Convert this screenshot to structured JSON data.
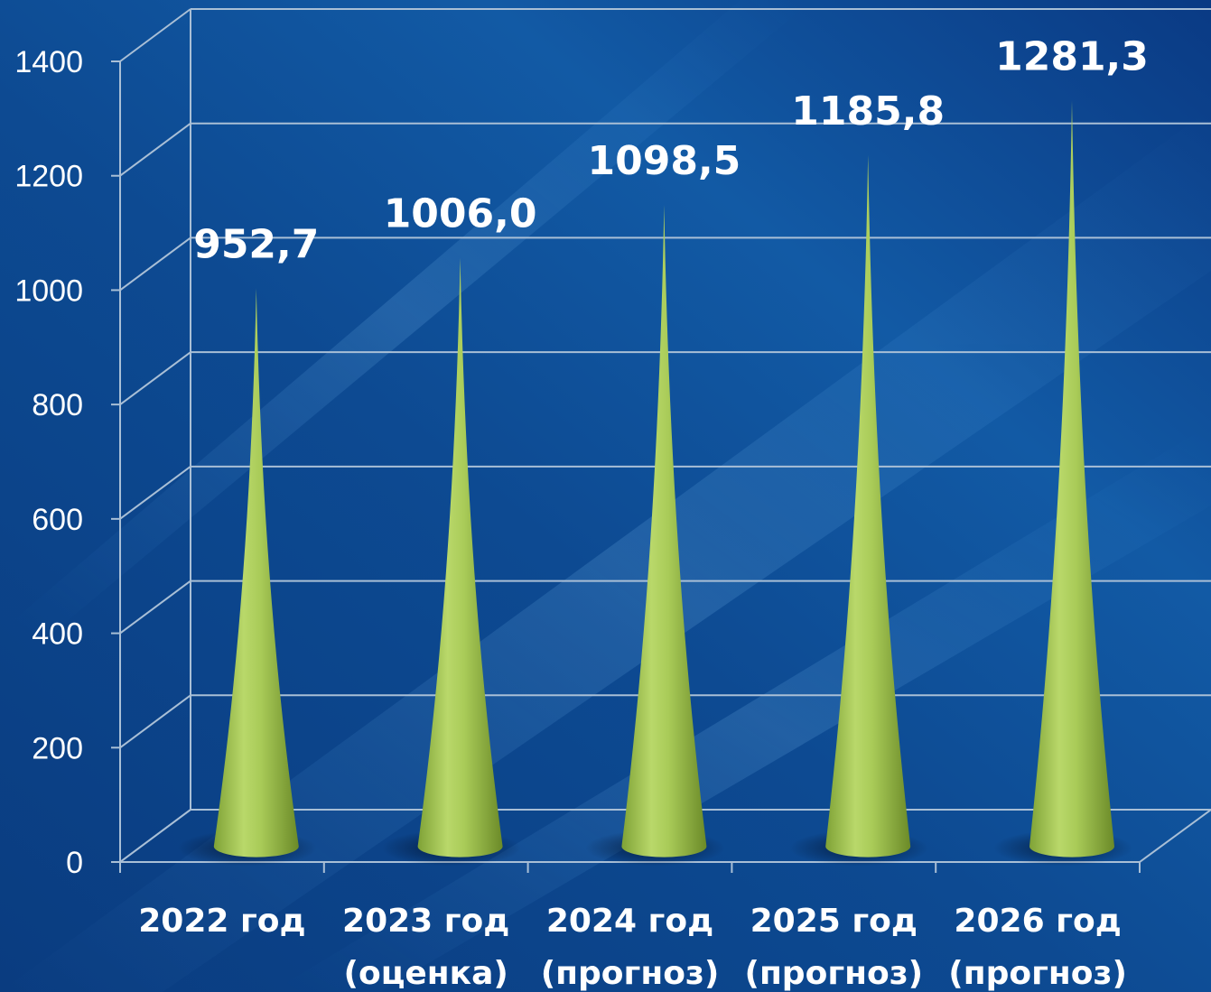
{
  "chart_data": {
    "type": "bar",
    "bar_shape": "cone",
    "categories": [
      [
        "2022 год"
      ],
      [
        "2023 год",
        "(оценка)"
      ],
      [
        "2024 год",
        "(прогноз)"
      ],
      [
        "2025 год",
        "(прогноз)"
      ],
      [
        "2026 год",
        "(прогноз)"
      ]
    ],
    "values": [
      952.7,
      1006.0,
      1098.5,
      1185.8,
      1281.3
    ],
    "value_labels": [
      "952,7",
      "1006,0",
      "1098,5",
      "1185,8",
      "1281,3"
    ],
    "ylim": [
      0,
      1400
    ],
    "yticks": [
      0,
      200,
      400,
      600,
      800,
      1000,
      1200,
      1400
    ],
    "grid": true,
    "legend": "none",
    "colors": {
      "cone_light": "#c6e07a",
      "cone_mid": "#9cc24f",
      "cone_dark": "#6f8f2b",
      "grid": "#a9bfd6",
      "text": "#ffffff",
      "bg_dark": "#082f72",
      "bg_light": "#1f73b8"
    }
  }
}
